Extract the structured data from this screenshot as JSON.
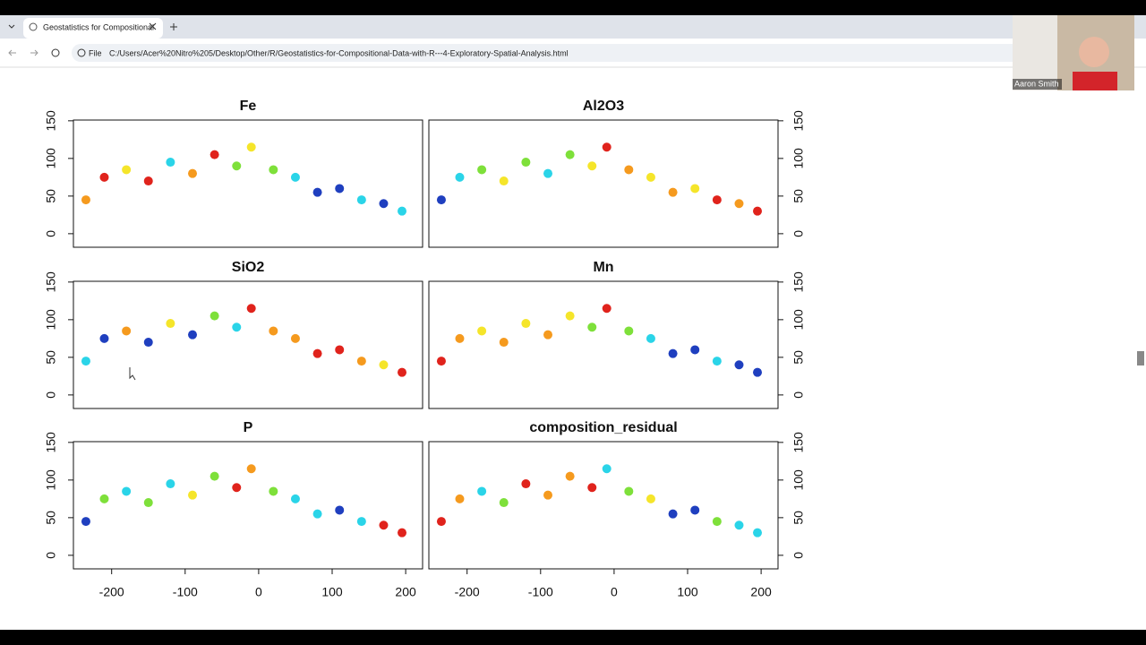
{
  "browser": {
    "tab_title": "Geostatistics for Compositional",
    "scheme": "File",
    "url": "C:/Users/Acer%20Nitro%205/Desktop/Other/R/Geostatistics-for-Compositional-Data-with-R---4-Exploratory-Spatial-Analysis.html"
  },
  "webcam": {
    "name": "Aaron Smith"
  },
  "chart_data": [
    {
      "type": "scatter",
      "title": "Fe",
      "yaxis_side": "left",
      "show_xaxis": false,
      "x": [
        -235,
        -210,
        -180,
        -150,
        -120,
        -90,
        -60,
        -30,
        -10,
        20,
        50,
        80,
        110,
        140,
        170,
        195
      ],
      "y": [
        45,
        75,
        85,
        70,
        95,
        80,
        105,
        90,
        115,
        85,
        75,
        55,
        60,
        45,
        40,
        30
      ],
      "colors": [
        "#f59a1e",
        "#e0231c",
        "#f5e52a",
        "#e0231c",
        "#2ad4e8",
        "#f59a1e",
        "#e0231c",
        "#7ee03a",
        "#f5e52a",
        "#7ee03a",
        "#2ad4e8",
        "#1f3fbf",
        "#1f3fbf",
        "#2ad4e8",
        "#1f3fbf",
        "#2ad4e8"
      ],
      "xlim": [
        -252,
        223
      ],
      "ylim": [
        -18,
        151
      ],
      "xticks": [
        -200,
        -100,
        0,
        100,
        200
      ],
      "yticks": [
        0,
        50,
        100,
        150
      ]
    },
    {
      "type": "scatter",
      "title": "Al2O3",
      "yaxis_side": "right",
      "show_xaxis": false,
      "x": [
        -235,
        -210,
        -180,
        -150,
        -120,
        -90,
        -60,
        -30,
        -10,
        20,
        50,
        80,
        110,
        140,
        170,
        195
      ],
      "y": [
        45,
        75,
        85,
        70,
        95,
        80,
        105,
        90,
        115,
        85,
        75,
        55,
        60,
        45,
        40,
        30
      ],
      "colors": [
        "#1f3fbf",
        "#2ad4e8",
        "#7ee03a",
        "#f5e52a",
        "#7ee03a",
        "#2ad4e8",
        "#7ee03a",
        "#f5e52a",
        "#e0231c",
        "#f59a1e",
        "#f5e52a",
        "#f59a1e",
        "#f5e52a",
        "#e0231c",
        "#f59a1e",
        "#e0231c"
      ],
      "xlim": [
        -252,
        223
      ],
      "ylim": [
        -18,
        151
      ],
      "xticks": [
        -200,
        -100,
        0,
        100,
        200
      ],
      "yticks": [
        0,
        50,
        100,
        150
      ]
    },
    {
      "type": "scatter",
      "title": "SiO2",
      "yaxis_side": "left",
      "show_xaxis": false,
      "x": [
        -235,
        -210,
        -180,
        -150,
        -120,
        -90,
        -60,
        -30,
        -10,
        20,
        50,
        80,
        110,
        140,
        170,
        195
      ],
      "y": [
        45,
        75,
        85,
        70,
        95,
        80,
        105,
        90,
        115,
        85,
        75,
        55,
        60,
        45,
        40,
        30
      ],
      "colors": [
        "#2ad4e8",
        "#1f3fbf",
        "#f59a1e",
        "#1f3fbf",
        "#f5e52a",
        "#1f3fbf",
        "#7ee03a",
        "#2ad4e8",
        "#e0231c",
        "#f59a1e",
        "#f59a1e",
        "#e0231c",
        "#e0231c",
        "#f59a1e",
        "#f5e52a",
        "#e0231c"
      ],
      "xlim": [
        -252,
        223
      ],
      "ylim": [
        -18,
        151
      ],
      "xticks": [
        -200,
        -100,
        0,
        100,
        200
      ],
      "yticks": [
        0,
        50,
        100,
        150
      ]
    },
    {
      "type": "scatter",
      "title": "Mn",
      "yaxis_side": "right",
      "show_xaxis": false,
      "x": [
        -235,
        -210,
        -180,
        -150,
        -120,
        -90,
        -60,
        -30,
        -10,
        20,
        50,
        80,
        110,
        140,
        170,
        195
      ],
      "y": [
        45,
        75,
        85,
        70,
        95,
        80,
        105,
        90,
        115,
        85,
        75,
        55,
        60,
        45,
        40,
        30
      ],
      "colors": [
        "#e0231c",
        "#f59a1e",
        "#f5e52a",
        "#f59a1e",
        "#f5e52a",
        "#f59a1e",
        "#f5e52a",
        "#7ee03a",
        "#e0231c",
        "#7ee03a",
        "#2ad4e8",
        "#1f3fbf",
        "#1f3fbf",
        "#2ad4e8",
        "#1f3fbf",
        "#1f3fbf"
      ],
      "xlim": [
        -252,
        223
      ],
      "ylim": [
        -18,
        151
      ],
      "xticks": [
        -200,
        -100,
        0,
        100,
        200
      ],
      "yticks": [
        0,
        50,
        100,
        150
      ]
    },
    {
      "type": "scatter",
      "title": "P",
      "yaxis_side": "left",
      "show_xaxis": true,
      "x": [
        -235,
        -210,
        -180,
        -150,
        -120,
        -90,
        -60,
        -30,
        -10,
        20,
        50,
        80,
        110,
        140,
        170,
        195
      ],
      "y": [
        45,
        75,
        85,
        70,
        95,
        80,
        105,
        90,
        115,
        85,
        75,
        55,
        60,
        45,
        40,
        30
      ],
      "colors": [
        "#1f3fbf",
        "#7ee03a",
        "#2ad4e8",
        "#7ee03a",
        "#2ad4e8",
        "#f5e52a",
        "#7ee03a",
        "#e0231c",
        "#f59a1e",
        "#7ee03a",
        "#2ad4e8",
        "#2ad4e8",
        "#1f3fbf",
        "#2ad4e8",
        "#e0231c",
        "#e0231c"
      ],
      "xlim": [
        -252,
        223
      ],
      "ylim": [
        -18,
        151
      ],
      "xticks": [
        -200,
        -100,
        0,
        100,
        200
      ],
      "yticks": [
        0,
        50,
        100,
        150
      ]
    },
    {
      "type": "scatter",
      "title": "composition_residual",
      "yaxis_side": "right",
      "show_xaxis": true,
      "x": [
        -235,
        -210,
        -180,
        -150,
        -120,
        -90,
        -60,
        -30,
        -10,
        20,
        50,
        80,
        110,
        140,
        170,
        195
      ],
      "y": [
        45,
        75,
        85,
        70,
        95,
        80,
        105,
        90,
        115,
        85,
        75,
        55,
        60,
        45,
        40,
        30
      ],
      "colors": [
        "#e0231c",
        "#f59a1e",
        "#2ad4e8",
        "#7ee03a",
        "#e0231c",
        "#f59a1e",
        "#f59a1e",
        "#e0231c",
        "#2ad4e8",
        "#7ee03a",
        "#f5e52a",
        "#1f3fbf",
        "#1f3fbf",
        "#7ee03a",
        "#2ad4e8",
        "#2ad4e8"
      ],
      "xlim": [
        -252,
        223
      ],
      "ylim": [
        -18,
        151
      ],
      "xticks": [
        -200,
        -100,
        0,
        100,
        200
      ],
      "yticks": [
        0,
        50,
        100,
        150
      ]
    }
  ]
}
